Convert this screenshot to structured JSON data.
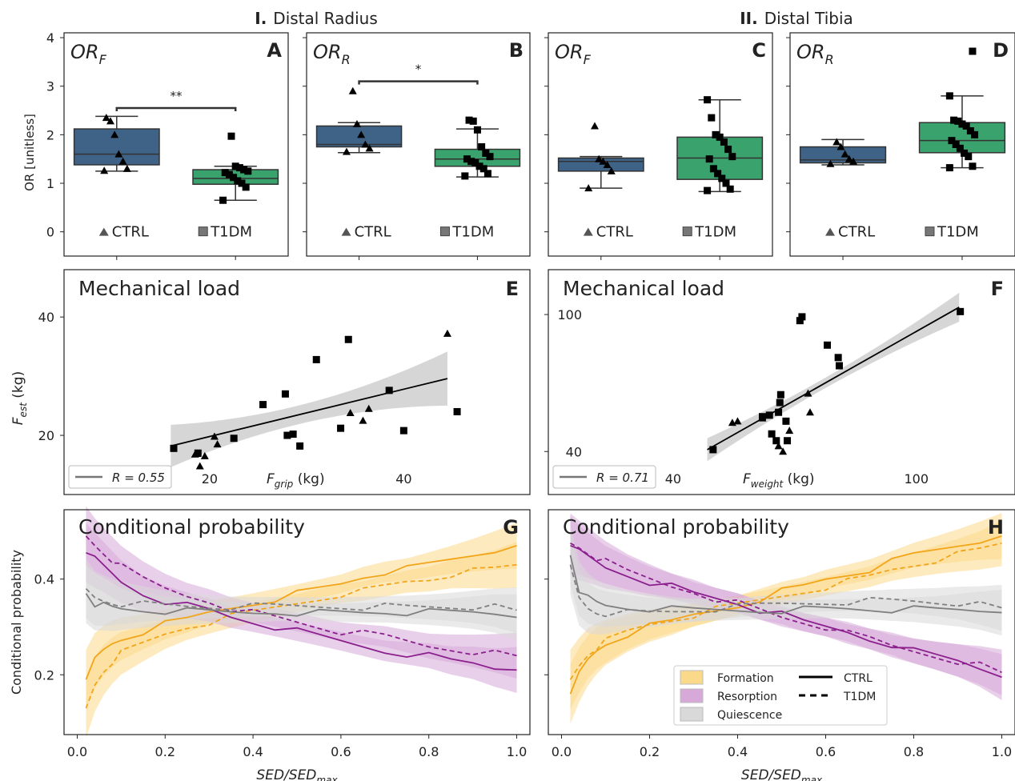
{
  "headers": {
    "group1_num": "I.",
    "group1_label": "Distal Radius",
    "group2_num": "II.",
    "group2_label": "Distal Tibia"
  },
  "chart_data": [
    {
      "type": "box",
      "panel": "A",
      "title_main": "OR",
      "title_sub": "F",
      "ylabel": "OR [unitless]",
      "ylim": [
        -0.5,
        4.1
      ],
      "yticks": [
        0,
        1,
        2,
        3,
        4
      ],
      "categories": [
        "CTRL",
        "T1DM"
      ],
      "boxes": [
        {
          "q1": 1.38,
          "median": 1.6,
          "q3": 2.12,
          "wlo": 1.25,
          "whi": 2.38,
          "points": [
            1.26,
            1.3,
            1.45,
            1.6,
            2.0,
            2.28,
            2.35
          ]
        },
        {
          "q1": 0.98,
          "median": 1.1,
          "q3": 1.28,
          "wlo": 0.65,
          "whi": 1.35,
          "points": [
            0.65,
            0.92,
            1.0,
            1.05,
            1.12,
            1.18,
            1.22,
            1.25,
            1.28,
            1.32,
            1.35,
            1.97
          ]
        }
      ],
      "significance": "**",
      "sig_y": 2.55,
      "legend": [
        "CTRL",
        "T1DM"
      ]
    },
    {
      "type": "box",
      "panel": "B",
      "title_main": "OR",
      "title_sub": "R",
      "ylim": [
        -0.5,
        4.1
      ],
      "yticks": [
        0,
        1,
        2,
        3,
        4
      ],
      "categories": [
        "CTRL",
        "T1DM"
      ],
      "boxes": [
        {
          "q1": 1.75,
          "median": 1.8,
          "q3": 2.18,
          "wlo": 1.63,
          "whi": 2.25,
          "points": [
            1.65,
            1.72,
            1.8,
            2.0,
            2.22,
            2.9
          ]
        },
        {
          "q1": 1.35,
          "median": 1.5,
          "q3": 1.7,
          "wlo": 1.13,
          "whi": 2.12,
          "points": [
            1.15,
            1.2,
            1.3,
            1.35,
            1.42,
            1.45,
            1.5,
            1.55,
            1.62,
            1.75,
            2.1,
            2.28,
            2.3
          ]
        }
      ],
      "significance": "*",
      "sig_y": 3.1,
      "legend": [
        "CTRL",
        "T1DM"
      ]
    },
    {
      "type": "box",
      "panel": "C",
      "title_main": "OR",
      "title_sub": "F",
      "ylim": [
        -0.5,
        4.1
      ],
      "yticks": [
        0,
        1,
        2,
        3,
        4
      ],
      "categories": [
        "CTRL",
        "T1DM"
      ],
      "boxes": [
        {
          "q1": 1.25,
          "median": 1.45,
          "q3": 1.52,
          "wlo": 0.9,
          "whi": 1.55,
          "points": [
            0.9,
            1.25,
            1.38,
            1.45,
            1.5,
            2.18
          ]
        },
        {
          "q1": 1.08,
          "median": 1.52,
          "q3": 1.95,
          "wlo": 0.83,
          "whi": 2.72,
          "points": [
            0.85,
            0.88,
            1.0,
            1.1,
            1.2,
            1.3,
            1.5,
            1.55,
            1.7,
            1.85,
            1.95,
            2.0,
            2.35,
            2.72
          ]
        }
      ],
      "legend": [
        "CTRL",
        "T1DM"
      ]
    },
    {
      "type": "box",
      "panel": "D",
      "title_main": "OR",
      "title_sub": "R",
      "ylim": [
        -0.5,
        4.1
      ],
      "yticks": [
        0,
        1,
        2,
        3,
        4
      ],
      "categories": [
        "CTRL",
        "T1DM"
      ],
      "boxes": [
        {
          "q1": 1.42,
          "median": 1.48,
          "q3": 1.75,
          "wlo": 1.38,
          "whi": 1.9,
          "points": [
            1.4,
            1.45,
            1.5,
            1.6,
            1.75,
            1.85
          ]
        },
        {
          "q1": 1.63,
          "median": 1.88,
          "q3": 2.25,
          "wlo": 1.32,
          "whi": 2.8,
          "points": [
            1.32,
            1.35,
            1.55,
            1.62,
            1.72,
            1.8,
            1.88,
            2.0,
            2.08,
            2.18,
            2.22,
            2.28,
            2.3,
            2.8,
            3.72
          ]
        }
      ],
      "legend": [
        "CTRL",
        "T1DM"
      ]
    },
    {
      "type": "scatter",
      "panel": "E",
      "title": "Mechanical load",
      "xlabel_main": "F",
      "xlabel_sub": "grip",
      "xlabel_unit": "(kg)",
      "ylabel_main": "F",
      "ylabel_sub": "est",
      "ylabel_unit": "(kg)",
      "xlim": [
        5,
        53
      ],
      "ylim": [
        10,
        48
      ],
      "xticks": [
        20,
        40
      ],
      "yticks": [
        20,
        40
      ],
      "ctrl": [
        [
          18.5,
          16.8
        ],
        [
          18.7,
          16.9
        ],
        [
          19.0,
          14.8
        ],
        [
          19.5,
          16.5
        ],
        [
          20.5,
          19.8
        ],
        [
          20.8,
          18.5
        ],
        [
          34.5,
          23.8
        ],
        [
          35.8,
          22.5
        ],
        [
          36.4,
          24.5
        ],
        [
          44.5,
          37.2
        ]
      ],
      "t1dm": [
        [
          16.3,
          17.8
        ],
        [
          18.8,
          17.0
        ],
        [
          22.5,
          19.5
        ],
        [
          25.5,
          25.2
        ],
        [
          27.8,
          27.0
        ],
        [
          28.0,
          20.0
        ],
        [
          28.6,
          20.2
        ],
        [
          29.3,
          18.2
        ],
        [
          31.0,
          32.8
        ],
        [
          33.5,
          21.2
        ],
        [
          34.3,
          36.2
        ],
        [
          38.5,
          27.6
        ],
        [
          40.0,
          20.8
        ],
        [
          45.5,
          24.0
        ]
      ],
      "fit": {
        "x": [
          16.0,
          44.5
        ],
        "y": [
          18.2,
          29.6
        ]
      },
      "legend_label": "R = 0.55"
    },
    {
      "type": "scatter",
      "panel": "F",
      "title": "Mechanical load",
      "xlabel_main": "F",
      "xlabel_sub": "weight",
      "xlabel_unit": "(kg)",
      "xscale": "log",
      "yscale": "log",
      "xlim": [
        25,
        145
      ],
      "ylim": [
        30,
        135
      ],
      "xticks": [
        40,
        100
      ],
      "yticks": [
        40,
        100
      ],
      "ctrl": [
        [
          50.0,
          48.5
        ],
        [
          51.0,
          49.0
        ],
        [
          56.0,
          50.0
        ],
        [
          59.5,
          41.5
        ],
        [
          60.5,
          40.0
        ],
        [
          62.0,
          46.0
        ],
        [
          66.5,
          59.0
        ],
        [
          67.0,
          52.0
        ]
      ],
      "t1dm": [
        [
          46.5,
          40.5
        ],
        [
          56.0,
          50.5
        ],
        [
          57.5,
          51.0
        ],
        [
          58.0,
          45.0
        ],
        [
          59.0,
          43.0
        ],
        [
          59.5,
          52.0
        ],
        [
          59.8,
          55.5
        ],
        [
          60.0,
          58.5
        ],
        [
          61.2,
          49.0
        ],
        [
          61.5,
          43.0
        ],
        [
          64.5,
          96.0
        ],
        [
          65.0,
          98.5
        ],
        [
          71.5,
          81.5
        ],
        [
          74.5,
          75.0
        ],
        [
          74.8,
          71.0
        ],
        [
          118.0,
          102.0
        ]
      ],
      "fit": {
        "x": [
          45.5,
          117.5
        ],
        "y": [
          40.5,
          105.0
        ]
      },
      "legend_label": "R = 0.71"
    },
    {
      "type": "line",
      "panel": "G",
      "title": "Conditional probability",
      "xlabel": "SED/SED",
      "xlabel_sub": "max",
      "ylabel": "Conditional probability",
      "xlim": [
        -0.03,
        1.03
      ],
      "ylim": [
        0.075,
        0.545
      ],
      "xticks": [
        "0.0",
        "0.2",
        "0.4",
        "0.6",
        "0.8",
        "1.0"
      ],
      "yticks": [
        "0.2",
        "0.4"
      ],
      "x": [
        0.02,
        0.04,
        0.06,
        0.08,
        0.1,
        0.15,
        0.2,
        0.25,
        0.3,
        0.35,
        0.4,
        0.45,
        0.5,
        0.55,
        0.6,
        0.65,
        0.7,
        0.75,
        0.8,
        0.85,
        0.9,
        0.95,
        1.0
      ],
      "series": [
        {
          "name": "Formation CTRL",
          "y": [
            0.19,
            0.23,
            0.25,
            0.265,
            0.275,
            0.29,
            0.305,
            0.315,
            0.33,
            0.34,
            0.35,
            0.36,
            0.37,
            0.38,
            0.39,
            0.405,
            0.415,
            0.42,
            0.43,
            0.44,
            0.45,
            0.46,
            0.47
          ]
        },
        {
          "name": "Formation T1DM",
          "y": [
            0.13,
            0.18,
            0.21,
            0.23,
            0.245,
            0.265,
            0.285,
            0.3,
            0.31,
            0.32,
            0.33,
            0.34,
            0.35,
            0.36,
            0.37,
            0.375,
            0.385,
            0.395,
            0.4,
            0.41,
            0.415,
            0.42,
            0.43
          ]
        },
        {
          "name": "Resorption CTRL",
          "y": [
            0.455,
            0.44,
            0.425,
            0.41,
            0.395,
            0.37,
            0.355,
            0.345,
            0.335,
            0.32,
            0.31,
            0.3,
            0.29,
            0.28,
            0.27,
            0.26,
            0.25,
            0.245,
            0.24,
            0.23,
            0.225,
            0.215,
            0.21
          ]
        },
        {
          "name": "Resorption T1DM",
          "y": [
            0.49,
            0.47,
            0.455,
            0.44,
            0.425,
            0.4,
            0.38,
            0.365,
            0.355,
            0.34,
            0.33,
            0.32,
            0.31,
            0.3,
            0.29,
            0.285,
            0.28,
            0.27,
            0.26,
            0.255,
            0.25,
            0.245,
            0.24
          ]
        },
        {
          "name": "Quiescence CTRL",
          "y": [
            0.37,
            0.35,
            0.345,
            0.34,
            0.338,
            0.335,
            0.333,
            0.332,
            0.331,
            0.33,
            0.33,
            0.332,
            0.331,
            0.33,
            0.33,
            0.33,
            0.331,
            0.33,
            0.33,
            0.33,
            0.33,
            0.328,
            0.32
          ]
        },
        {
          "name": "Quiescence T1DM",
          "y": [
            0.38,
            0.36,
            0.355,
            0.352,
            0.35,
            0.348,
            0.345,
            0.343,
            0.342,
            0.342,
            0.342,
            0.343,
            0.343,
            0.343,
            0.343,
            0.343,
            0.343,
            0.342,
            0.342,
            0.342,
            0.342,
            0.34,
            0.335
          ]
        }
      ]
    },
    {
      "type": "line",
      "panel": "H",
      "title": "Conditional probability",
      "xlabel": "SED/SED",
      "xlabel_sub": "max",
      "xlim": [
        -0.03,
        1.03
      ],
      "ylim": [
        0.075,
        0.545
      ],
      "xticks": [
        "0.0",
        "0.2",
        "0.4",
        "0.6",
        "0.8",
        "1.0"
      ],
      "x": [
        0.02,
        0.04,
        0.06,
        0.08,
        0.1,
        0.15,
        0.2,
        0.25,
        0.3,
        0.35,
        0.4,
        0.45,
        0.5,
        0.55,
        0.6,
        0.65,
        0.7,
        0.75,
        0.8,
        0.85,
        0.9,
        0.95,
        1.0
      ],
      "series": [
        {
          "name": "Formation CTRL",
          "y": [
            0.16,
            0.2,
            0.23,
            0.25,
            0.265,
            0.285,
            0.3,
            0.31,
            0.325,
            0.335,
            0.345,
            0.36,
            0.375,
            0.385,
            0.4,
            0.41,
            0.42,
            0.435,
            0.45,
            0.46,
            0.47,
            0.48,
            0.49
          ]
        },
        {
          "name": "Formation T1DM",
          "y": [
            0.19,
            0.22,
            0.245,
            0.26,
            0.27,
            0.29,
            0.305,
            0.315,
            0.325,
            0.335,
            0.345,
            0.355,
            0.365,
            0.375,
            0.385,
            0.395,
            0.405,
            0.42,
            0.43,
            0.44,
            0.45,
            0.46,
            0.475
          ]
        },
        {
          "name": "Resorption CTRL",
          "y": [
            0.47,
            0.455,
            0.445,
            0.435,
            0.425,
            0.41,
            0.395,
            0.385,
            0.37,
            0.36,
            0.35,
            0.335,
            0.325,
            0.31,
            0.3,
            0.29,
            0.275,
            0.265,
            0.25,
            0.24,
            0.23,
            0.215,
            0.195
          ]
        },
        {
          "name": "Resorption T1DM",
          "y": [
            0.475,
            0.465,
            0.455,
            0.445,
            0.435,
            0.415,
            0.4,
            0.385,
            0.375,
            0.36,
            0.35,
            0.335,
            0.32,
            0.31,
            0.3,
            0.285,
            0.275,
            0.26,
            0.25,
            0.24,
            0.23,
            0.22,
            0.205
          ]
        },
        {
          "name": "Quiescence CTRL",
          "y": [
            0.45,
            0.38,
            0.36,
            0.35,
            0.345,
            0.34,
            0.338,
            0.336,
            0.335,
            0.335,
            0.335,
            0.335,
            0.336,
            0.337,
            0.338,
            0.338,
            0.337,
            0.336,
            0.336,
            0.335,
            0.335,
            0.334,
            0.33
          ]
        },
        {
          "name": "Quiescence T1DM",
          "y": [
            0.43,
            0.36,
            0.34,
            0.332,
            0.33,
            0.33,
            0.33,
            0.332,
            0.335,
            0.338,
            0.34,
            0.345,
            0.348,
            0.35,
            0.352,
            0.354,
            0.355,
            0.355,
            0.354,
            0.352,
            0.35,
            0.345,
            0.34
          ]
        }
      ],
      "legend": {
        "Formation": "Formation",
        "Resorption": "Resorption",
        "Quiescence": "Quiescence",
        "CTRL": "CTRL",
        "T1DM": "T1DM"
      }
    }
  ],
  "colors": {
    "ctrl_box": "#3e6387",
    "t1dm_box": "#3aa36d",
    "formation": "#f2a51a",
    "resorption": "#8b1f8d",
    "quiescence": "#7f7f7f",
    "formation_fill": "#fbd98a",
    "resorption_fill": "#d7a9d8",
    "quiescence_fill": "#d9d9d9"
  }
}
